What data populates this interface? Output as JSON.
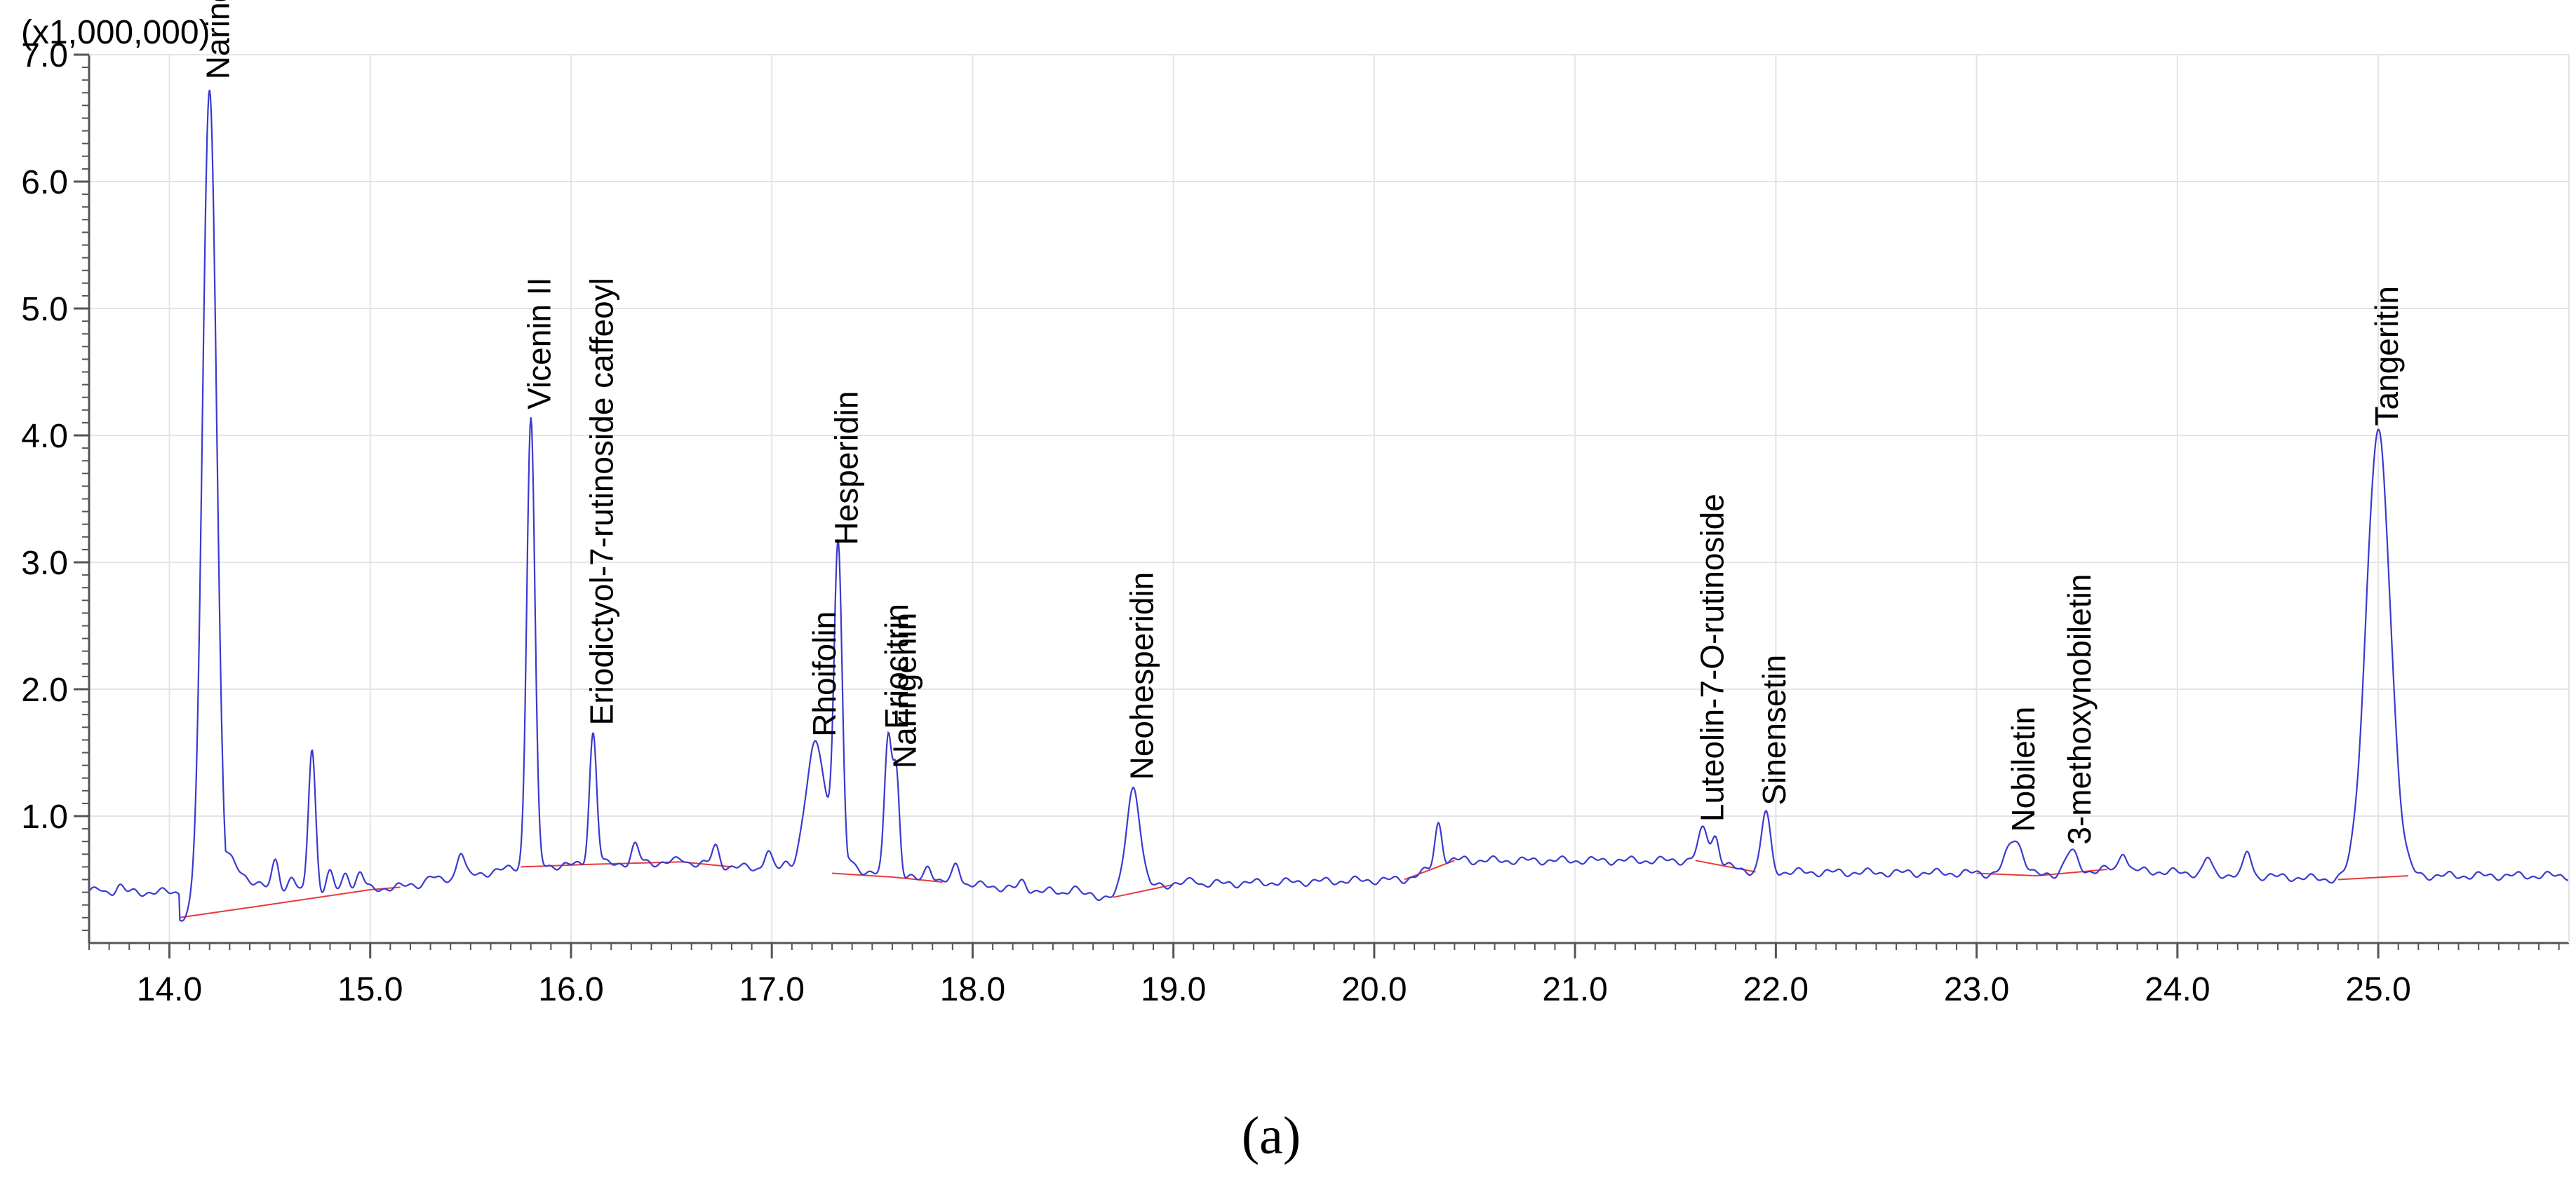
{
  "chart_data": {
    "type": "line",
    "y_unit_label": "(x1,000,000)",
    "panel_label": "(a)",
    "xlim": [
      13.6,
      25.95
    ],
    "ylim": [
      0,
      7.0
    ],
    "x_ticks": [
      "14.0",
      "15.0",
      "16.0",
      "17.0",
      "18.0",
      "19.0",
      "20.0",
      "21.0",
      "22.0",
      "23.0",
      "24.0",
      "25.0"
    ],
    "y_ticks": [
      "1.0",
      "2.0",
      "3.0",
      "4.0",
      "5.0",
      "6.0",
      "7.0"
    ],
    "grid": true,
    "colors": {
      "trace": "#3a3ad0",
      "baseline": "#e83a3a",
      "grid": "#e4e4e4",
      "axis": "#555555"
    },
    "peaks": [
      {
        "label": "Naringin",
        "rt": 14.2,
        "height": 6.75,
        "width": 0.035,
        "tail": 0.16
      },
      {
        "label": "Vicenin II",
        "rt": 15.8,
        "height": 4.15,
        "width": 0.02,
        "tail": 0
      },
      {
        "label": "Eriodictyol-7-rutinoside caffeoyl",
        "rt": 16.11,
        "height": 1.66,
        "width": 0.018,
        "tail": 0
      },
      {
        "label": "Rhoifolin",
        "rt": 17.22,
        "height": 1.57,
        "width": 0.05,
        "tail": 0
      },
      {
        "label": "Hesperidin",
        "rt": 17.33,
        "height": 3.08,
        "width": 0.02,
        "tail": 0.06
      },
      {
        "label": "Eriocitrin",
        "rt": 17.58,
        "height": 1.63,
        "width": 0.018,
        "tail": 0
      },
      {
        "label": "Naringenin",
        "rt": 17.62,
        "height": 1.32,
        "width": 0.016,
        "tail": 0
      },
      {
        "label": "Neohesperidin",
        "rt": 18.8,
        "height": 1.23,
        "width": 0.035,
        "tail": 0.08
      },
      {
        "label": "Luteolin-7-O-rutinoside",
        "rt": 21.64,
        "height": 0.9,
        "width": 0.025,
        "tail": 0
      },
      {
        "label": "Sinensetin",
        "rt": 21.95,
        "height": 1.03,
        "width": 0.022,
        "tail": 0
      },
      {
        "label": "Nobiletin",
        "rt": 23.19,
        "height": 0.82,
        "width": 0.04,
        "tail": 0
      },
      {
        "label": "3-methoxynobiletin",
        "rt": 23.47,
        "height": 0.72,
        "width": 0.03,
        "tail": 0
      },
      {
        "label": "Tangeritin",
        "rt": 25.0,
        "height": 4.02,
        "width": 0.06,
        "tail": 0
      }
    ],
    "minor_peaks": [
      {
        "rt": 13.65,
        "height": 0.42
      },
      {
        "rt": 13.75,
        "height": 0.45
      },
      {
        "rt": 13.85,
        "height": 0.33
      },
      {
        "rt": 14.53,
        "height": 0.56
      },
      {
        "rt": 14.61,
        "height": 0.46
      },
      {
        "rt": 14.71,
        "height": 1.5
      },
      {
        "rt": 14.8,
        "height": 0.53
      },
      {
        "rt": 14.88,
        "height": 0.55
      },
      {
        "rt": 14.95,
        "height": 0.55
      },
      {
        "rt": 15.3,
        "height": 0.52
      },
      {
        "rt": 15.45,
        "height": 0.72
      },
      {
        "rt": 15.6,
        "height": 0.48
      },
      {
        "rt": 16.32,
        "height": 0.77
      },
      {
        "rt": 16.55,
        "height": 0.66
      },
      {
        "rt": 16.72,
        "height": 0.76
      },
      {
        "rt": 16.98,
        "height": 0.73
      },
      {
        "rt": 17.07,
        "height": 0.62
      },
      {
        "rt": 17.92,
        "height": 0.63
      },
      {
        "rt": 17.78,
        "height": 0.62
      },
      {
        "rt": 18.25,
        "height": 0.48
      },
      {
        "rt": 18.5,
        "height": 0.45
      },
      {
        "rt": 19.1,
        "height": 0.5
      },
      {
        "rt": 19.35,
        "height": 0.45
      },
      {
        "rt": 20.32,
        "height": 0.95
      },
      {
        "rt": 20.45,
        "height": 0.66
      },
      {
        "rt": 20.65,
        "height": 0.62
      },
      {
        "rt": 20.85,
        "height": 0.63
      },
      {
        "rt": 21.18,
        "height": 0.57
      },
      {
        "rt": 21.7,
        "height": 0.83
      },
      {
        "rt": 22.5,
        "height": 0.55
      },
      {
        "rt": 22.92,
        "height": 0.55
      },
      {
        "rt": 23.73,
        "height": 0.73
      },
      {
        "rt": 24.15,
        "height": 0.67
      },
      {
        "rt": 24.35,
        "height": 0.72
      },
      {
        "rt": 24.55,
        "height": 0.52
      },
      {
        "rt": 25.5,
        "height": 0.5
      },
      {
        "rt": 25.9,
        "height": 0.52
      }
    ],
    "baseline_segments": [
      [
        [
          14.05,
          0.2
        ],
        [
          14.4,
          0.28
        ],
        [
          15.0,
          0.42
        ],
        [
          15.15,
          0.44
        ]
      ],
      [
        [
          15.75,
          0.6
        ],
        [
          16.1,
          0.62
        ],
        [
          16.55,
          0.64
        ],
        [
          16.8,
          0.6
        ]
      ],
      [
        [
          17.3,
          0.55
        ],
        [
          17.6,
          0.52
        ],
        [
          17.85,
          0.48
        ]
      ],
      [
        [
          18.7,
          0.36
        ],
        [
          19.0,
          0.46
        ]
      ],
      [
        [
          20.15,
          0.5
        ],
        [
          20.4,
          0.65
        ]
      ],
      [
        [
          21.6,
          0.65
        ],
        [
          21.9,
          0.56
        ]
      ],
      [
        [
          23.0,
          0.55
        ],
        [
          23.3,
          0.53
        ],
        [
          23.65,
          0.58
        ]
      ],
      [
        [
          24.8,
          0.5
        ],
        [
          25.15,
          0.53
        ]
      ]
    ]
  }
}
